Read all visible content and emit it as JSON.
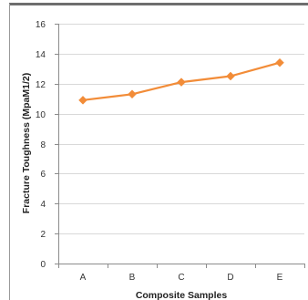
{
  "chart_data": {
    "type": "line",
    "title": "",
    "xlabel": "Composite Samples",
    "ylabel": "Fracture Toughness (MpaM1/2)",
    "categories": [
      "A",
      "B",
      "C",
      "D",
      "E"
    ],
    "series": [
      {
        "values": [
          10.9,
          11.3,
          12.1,
          12.5,
          13.4
        ],
        "color": "#f28c38",
        "marker": "diamond"
      }
    ],
    "ylim": [
      0,
      16
    ],
    "yticks": [
      0,
      2,
      4,
      6,
      8,
      10,
      12,
      14,
      16
    ],
    "grid": true,
    "legend": "none"
  },
  "colors": {
    "line": "#f28c38",
    "grid": "#d9d9d9",
    "axis": "#8c8c8c",
    "frame_top": "#6e6e6e"
  }
}
